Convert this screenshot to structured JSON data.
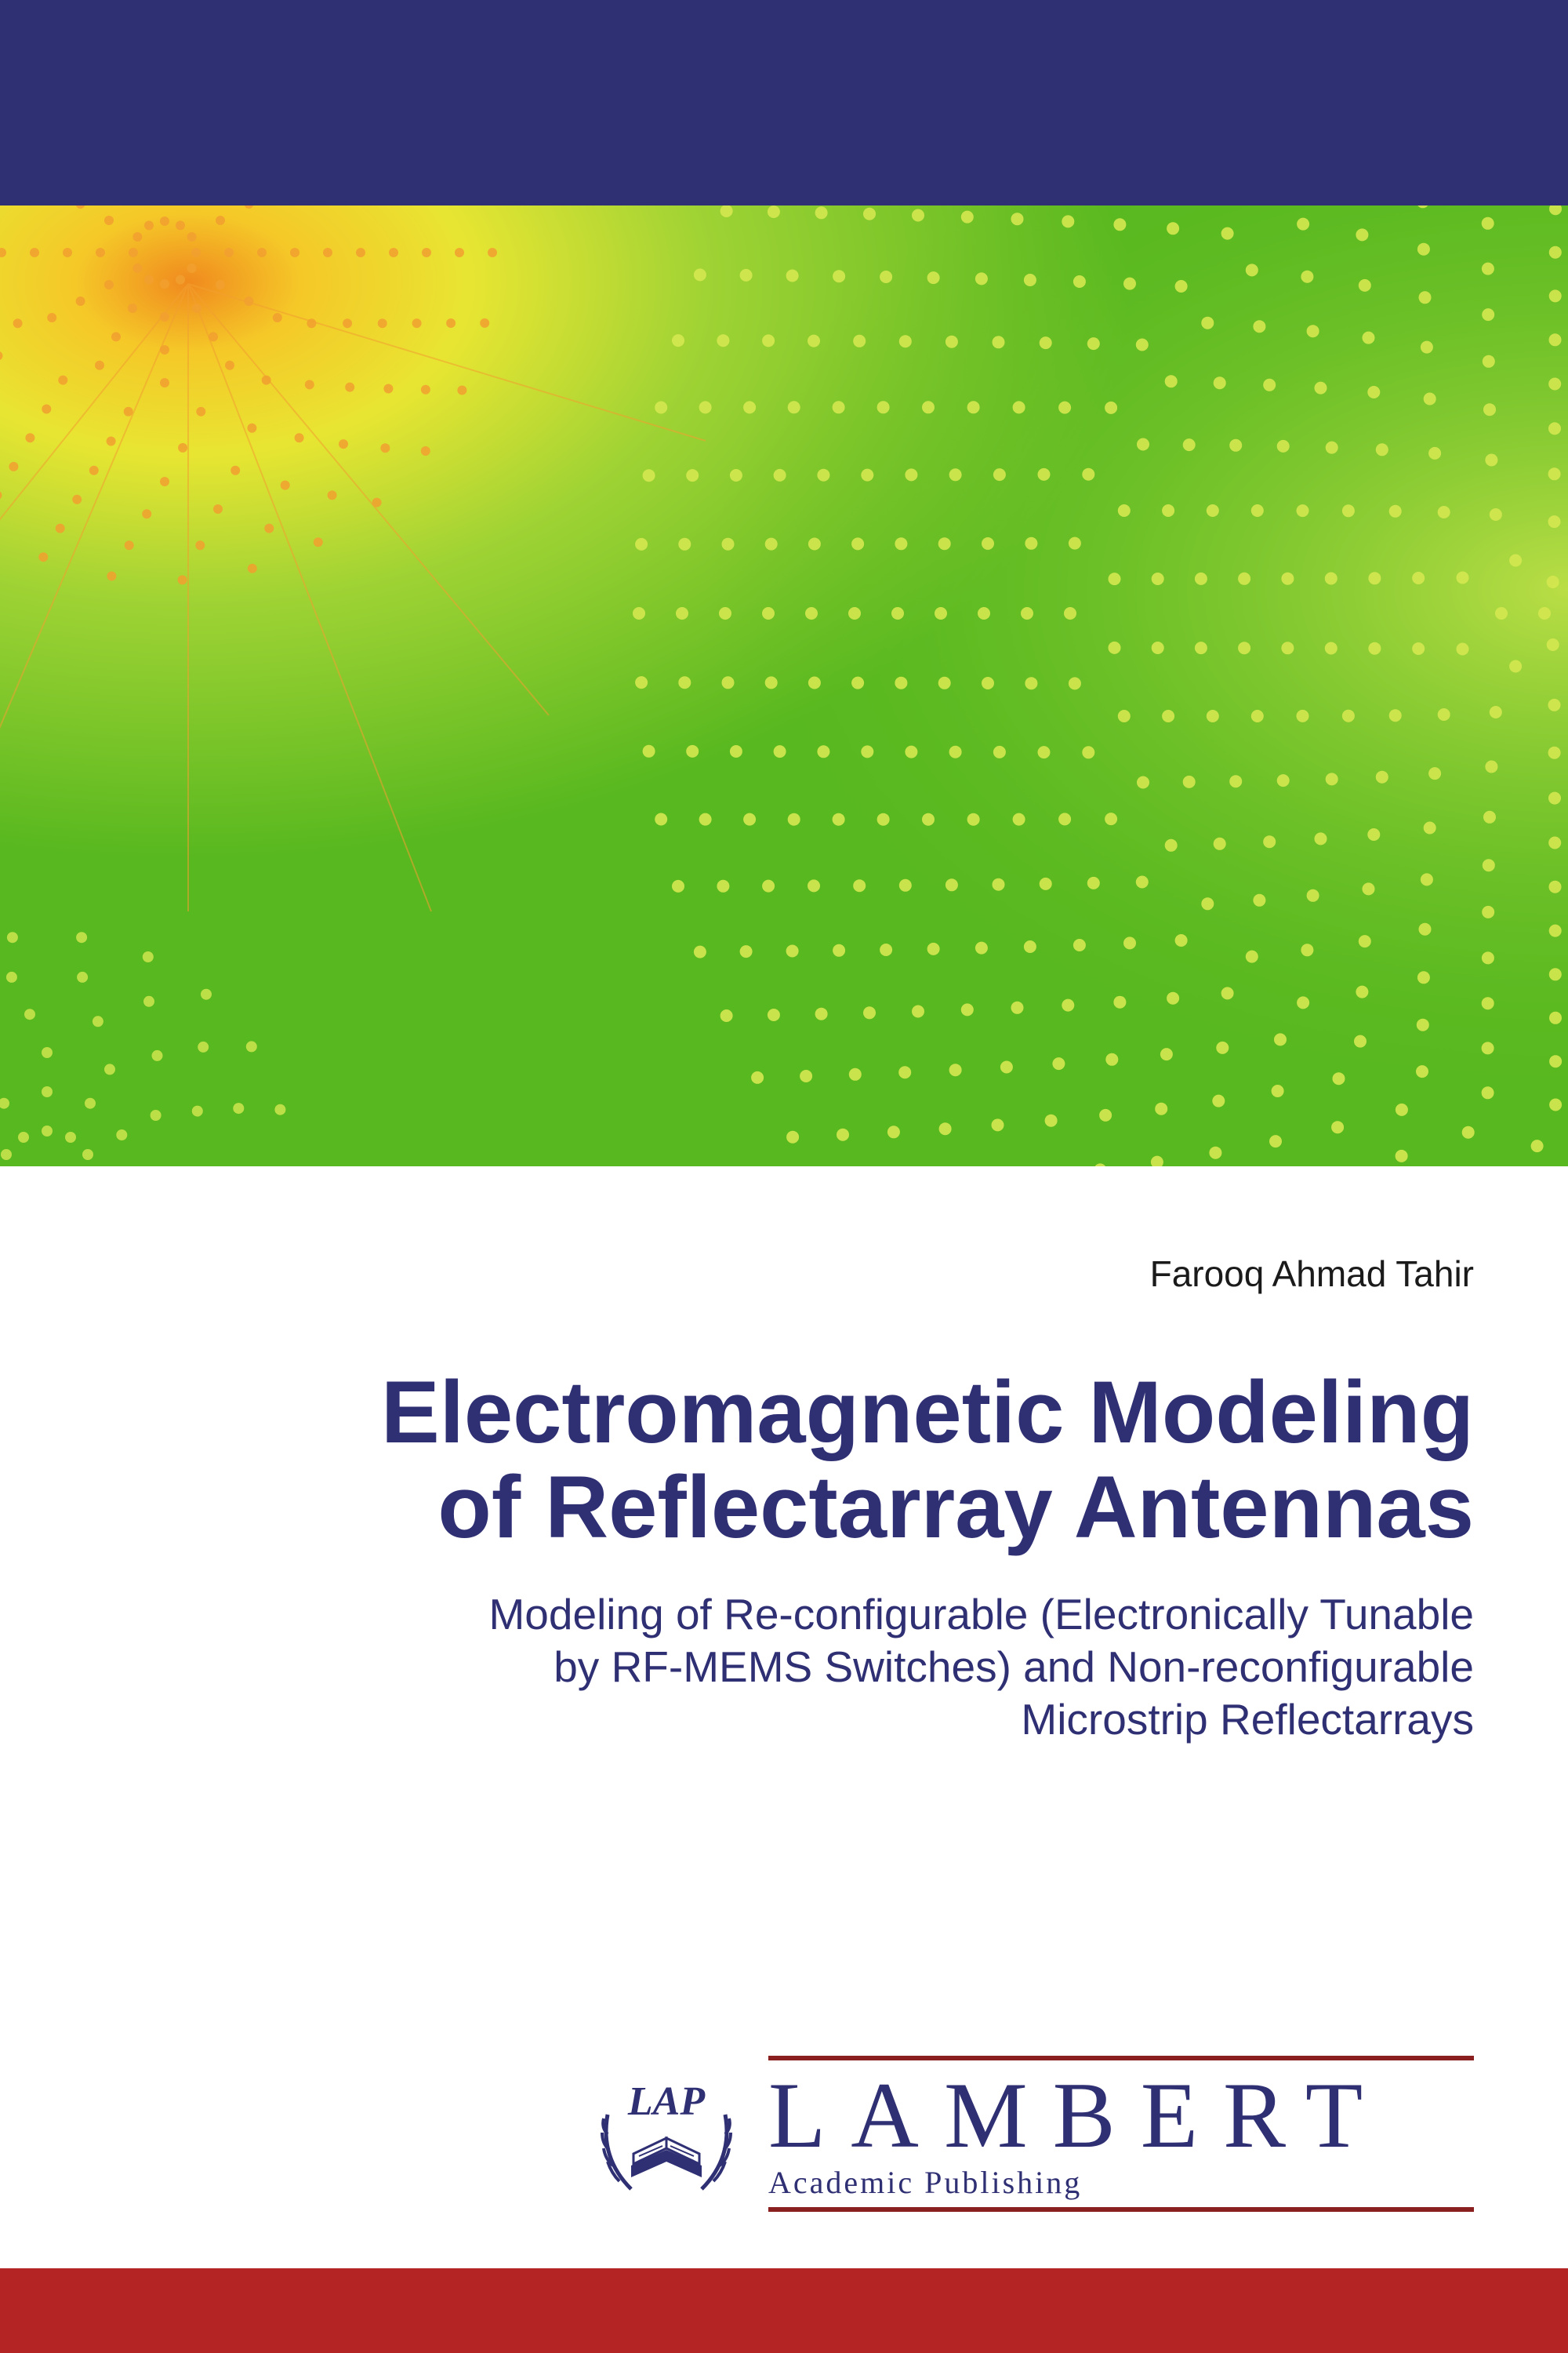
{
  "colors": {
    "top_band": "#2f2f74",
    "bottom_band": "#b42424",
    "title": "#2f2f74",
    "subtitle": "#2f2f74",
    "author": "#1a1a1a",
    "publisher_text": "#2f2f74",
    "publisher_line": "#8a1f1f",
    "graphic_green_light": "#d7e94a",
    "graphic_green": "#6cc22e",
    "graphic_green_dark": "#4aa818",
    "graphic_yellow": "#f5e533",
    "graphic_orange": "#f08a1e",
    "graphic_orange_deep": "#e35a10",
    "dot": "#d5e850",
    "dot_orange": "#f2a030"
  },
  "author": "Farooq Ahmad Tahir",
  "title_line1": "Electromagnetic Modeling",
  "title_line2": "of Reflectarray Antennas",
  "subtitle_line1": "Modeling of Re-configurable (Electronically Tunable",
  "subtitle_line2": "by RF-MEMS Switches) and Non-reconfigurable",
  "subtitle_line3": "Microstrip Reflectarrays",
  "publisher": {
    "name": "LAMBERT",
    "sub": "Academic Publishing",
    "logo_text": "LAP"
  }
}
